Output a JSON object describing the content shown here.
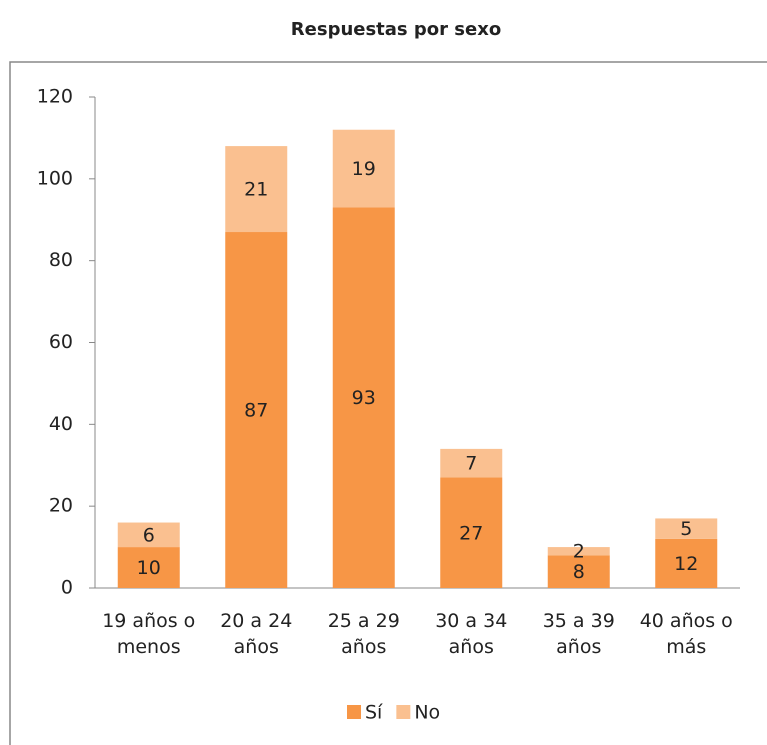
{
  "chart_data": {
    "type": "stacked_bar",
    "title": "Respuestas por sexo",
    "categories": [
      "19 años o menos",
      "20 a 24 años",
      "25 a 29 años",
      "30 a 34 años",
      "35 a 39 años",
      "40 años o más"
    ],
    "series": [
      {
        "name": "Sí",
        "color": "#f79646",
        "values": [
          10,
          87,
          93,
          27,
          8,
          12
        ]
      },
      {
        "name": "No",
        "color": "#fac090",
        "values": [
          6,
          21,
          19,
          7,
          2,
          5
        ]
      }
    ],
    "ylim": [
      0,
      120
    ],
    "yticks": [
      0,
      20,
      40,
      60,
      80,
      100,
      120
    ],
    "grid": false,
    "legend": "bottom"
  }
}
